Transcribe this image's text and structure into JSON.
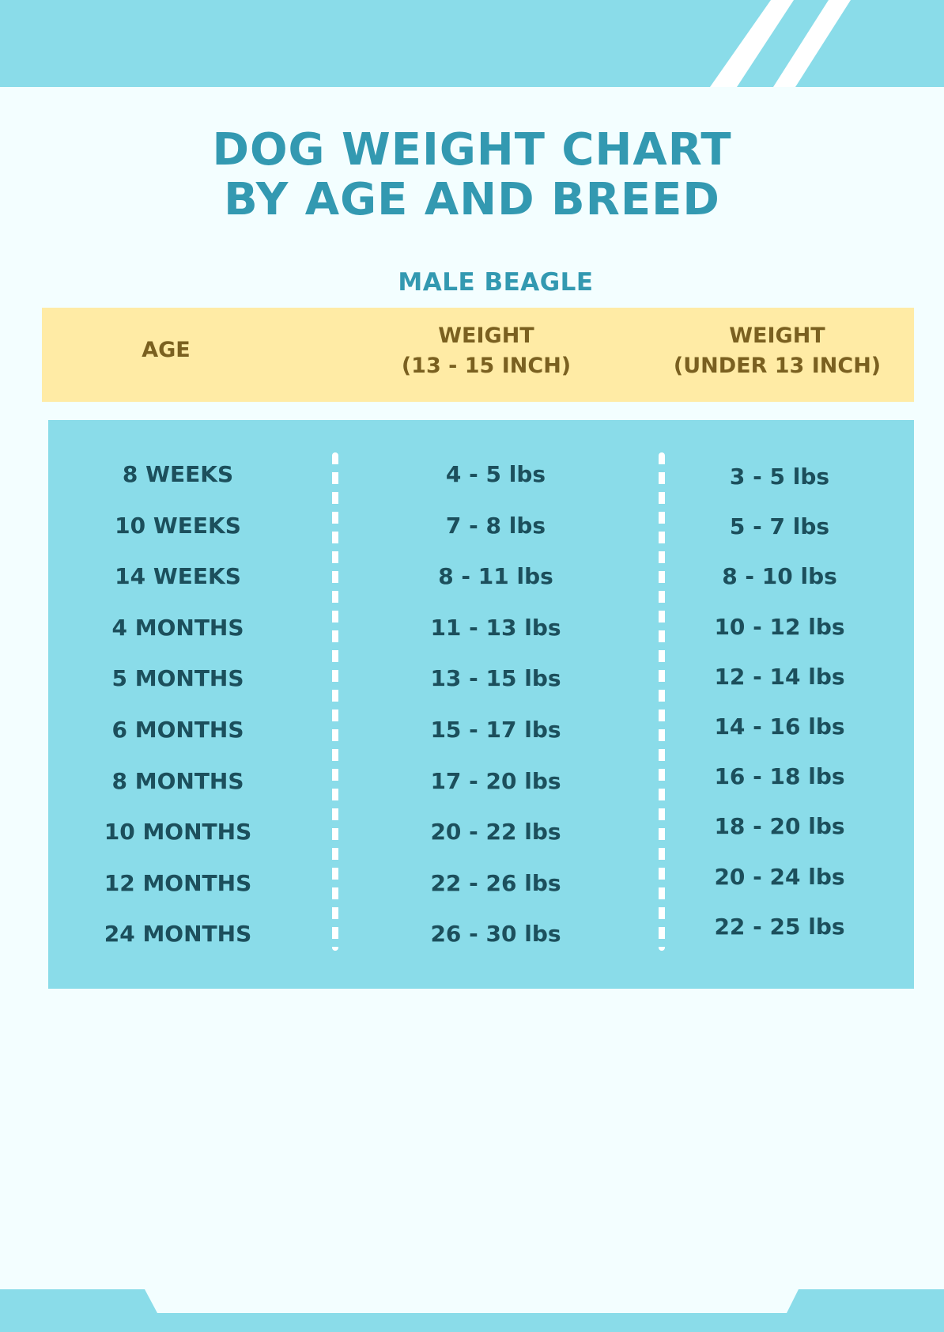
{
  "document": {
    "title_line1": "DOG WEIGHT CHART",
    "title_line2": "BY AGE AND BREED",
    "subtitle": "MALE BEAGLE",
    "colors": {
      "background": "#f3feff",
      "band": "#8adce9",
      "title": "#3399b1",
      "header_bg": "#ffeba5",
      "header_text": "#7a6020",
      "cell_text": "#1c4f5c"
    }
  },
  "table": {
    "headers": {
      "age": "AGE",
      "weight1_line1": "WEIGHT",
      "weight1_line2": "(13 - 15 INCH)",
      "weight2_line1": "WEIGHT",
      "weight2_line2": "(UNDER 13 INCH)"
    },
    "rows": [
      {
        "age": "8 WEEKS",
        "w1": "4 - 5 lbs",
        "w2": "3 - 5 lbs"
      },
      {
        "age": "10 WEEKS",
        "w1": "7 - 8 lbs",
        "w2": "5 - 7 lbs"
      },
      {
        "age": "14 WEEKS",
        "w1": "8 - 11 lbs",
        "w2": "8 - 10 lbs"
      },
      {
        "age": "4 MONTHS",
        "w1": "11 - 13 lbs",
        "w2": "10 - 12 lbs"
      },
      {
        "age": "5 MONTHS",
        "w1": "13 - 15 lbs",
        "w2": "12 - 14 lbs"
      },
      {
        "age": "6 MONTHS",
        "w1": "15 - 17 lbs",
        "w2": "14 - 16 lbs"
      },
      {
        "age": "8 MONTHS",
        "w1": "17 - 20 lbs",
        "w2": "16 - 18 lbs"
      },
      {
        "age": "10 MONTHS",
        "w1": "20 - 22 lbs",
        "w2": "18 - 20 lbs"
      },
      {
        "age": "12 MONTHS",
        "w1": "22 - 26 lbs",
        "w2": "20 - 24 lbs"
      },
      {
        "age": "24 MONTHS",
        "w1": "26 - 30 lbs",
        "w2": "22 - 25 lbs"
      }
    ]
  }
}
